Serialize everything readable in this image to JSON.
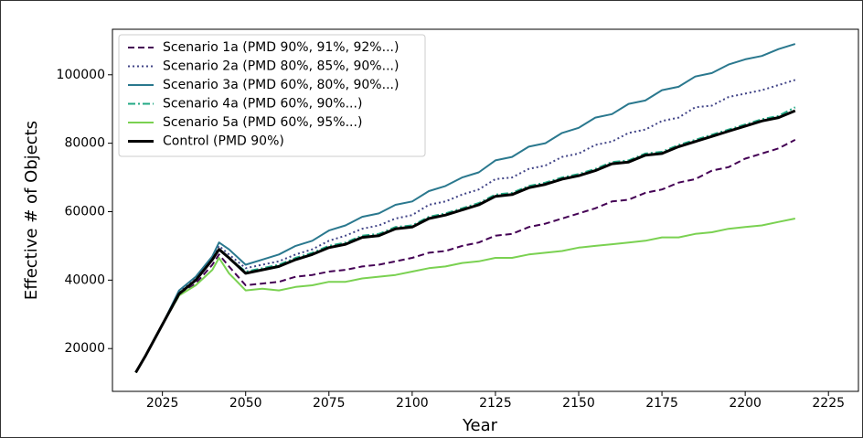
{
  "chart_data": {
    "type": "line",
    "xlabel": "Year",
    "ylabel": "Effective # of Objects",
    "x": [
      2017,
      2020,
      2025,
      2030,
      2035,
      2040,
      2042,
      2045,
      2050,
      2055,
      2060,
      2065,
      2070,
      2075,
      2080,
      2085,
      2090,
      2095,
      2100,
      2105,
      2110,
      2115,
      2120,
      2125,
      2130,
      2135,
      2140,
      2145,
      2150,
      2155,
      2160,
      2165,
      2170,
      2175,
      2180,
      2185,
      2190,
      2195,
      2200,
      2205,
      2210,
      2215
    ],
    "series": [
      {
        "name": "Scenario 1a (PMD 90%, 91%, 92%...)",
        "color": "#440154",
        "linestyle": "dashed",
        "linewidth": 2,
        "values": [
          13000,
          18000,
          27000,
          35500,
          39000,
          44500,
          47500,
          44000,
          38500,
          39000,
          39500,
          41000,
          41500,
          42500,
          43000,
          44000,
          44500,
          45500,
          46500,
          48000,
          48500,
          50000,
          51000,
          53000,
          53500,
          55500,
          56500,
          58000,
          59500,
          61000,
          63000,
          63500,
          65500,
          66500,
          68500,
          69500,
          72000,
          73000,
          75500,
          77000,
          78500,
          81000
        ]
      },
      {
        "name": "Scenario 2a (PMD 80%, 85%, 90%...)",
        "color": "#414487",
        "linestyle": "dotted",
        "linewidth": 2,
        "values": [
          13000,
          18000,
          27000,
          36500,
          40500,
          46500,
          50000,
          47500,
          43500,
          44500,
          45500,
          47500,
          49000,
          51500,
          53000,
          55000,
          56000,
          58000,
          59000,
          62000,
          63000,
          65000,
          66500,
          69500,
          70000,
          72500,
          73500,
          76000,
          77000,
          79500,
          80500,
          83000,
          84000,
          86500,
          87500,
          90500,
          91000,
          93500,
          94500,
          95500,
          97000,
          98500
        ]
      },
      {
        "name": "Scenario 3a (PMD 60%, 80%, 90%...)",
        "color": "#2a788e",
        "linestyle": "solid",
        "linewidth": 2,
        "values": [
          13000,
          18000,
          27000,
          37000,
          41000,
          47000,
          51000,
          49000,
          44500,
          46000,
          47500,
          50000,
          51500,
          54500,
          56000,
          58500,
          59500,
          62000,
          63000,
          66000,
          67500,
          70000,
          71500,
          75000,
          76000,
          79000,
          80000,
          83000,
          84500,
          87500,
          88500,
          91500,
          92500,
          95500,
          96500,
          99500,
          100500,
          103000,
          104500,
          105500,
          107500,
          109000
        ]
      },
      {
        "name": "Scenario 4a (PMD 60%, 90%...)",
        "color": "#22a884",
        "linestyle": "dashdot",
        "linewidth": 2,
        "values": [
          13000,
          18000,
          27000,
          36000,
          40000,
          46000,
          49000,
          46500,
          42500,
          43500,
          44500,
          46500,
          48000,
          50000,
          51000,
          53000,
          53500,
          55500,
          56000,
          58500,
          59500,
          61000,
          62500,
          65000,
          65500,
          67500,
          68500,
          70000,
          71000,
          72500,
          74500,
          75000,
          77000,
          77500,
          79500,
          81000,
          82500,
          84000,
          85500,
          87000,
          88000,
          90500
        ]
      },
      {
        "name": "Scenario 5a (PMD 60%, 95%...)",
        "color": "#7ad151",
        "linestyle": "solid",
        "linewidth": 2,
        "values": [
          13000,
          18000,
          27000,
          35500,
          38500,
          43000,
          46500,
          42000,
          37000,
          37500,
          37000,
          38000,
          38500,
          39500,
          39500,
          40500,
          41000,
          41500,
          42500,
          43500,
          44000,
          45000,
          45500,
          46500,
          46500,
          47500,
          48000,
          48500,
          49500,
          50000,
          50500,
          51000,
          51500,
          52500,
          52500,
          53500,
          54000,
          55000,
          55500,
          56000,
          57000,
          58000
        ]
      },
      {
        "name": "Control (PMD 90%)",
        "color": "#000000",
        "linestyle": "solid",
        "linewidth": 3,
        "values": [
          13000,
          18000,
          27000,
          36000,
          40000,
          46000,
          49000,
          46500,
          42000,
          43000,
          44000,
          46000,
          47500,
          49500,
          50500,
          52500,
          53000,
          55000,
          55500,
          58000,
          59000,
          60500,
          62000,
          64500,
          65000,
          67000,
          68000,
          69500,
          70500,
          72000,
          74000,
          74500,
          76500,
          77000,
          79000,
          80500,
          82000,
          83500,
          85000,
          86500,
          87500,
          89500
        ]
      }
    ],
    "xlim": [
      2010,
      2234
    ],
    "ylim": [
      7500,
      113300
    ],
    "xticks": [
      2025,
      2050,
      2075,
      2100,
      2125,
      2150,
      2175,
      2200,
      2225
    ],
    "yticks": [
      20000,
      40000,
      60000,
      80000,
      100000
    ],
    "legend": "upper left"
  }
}
